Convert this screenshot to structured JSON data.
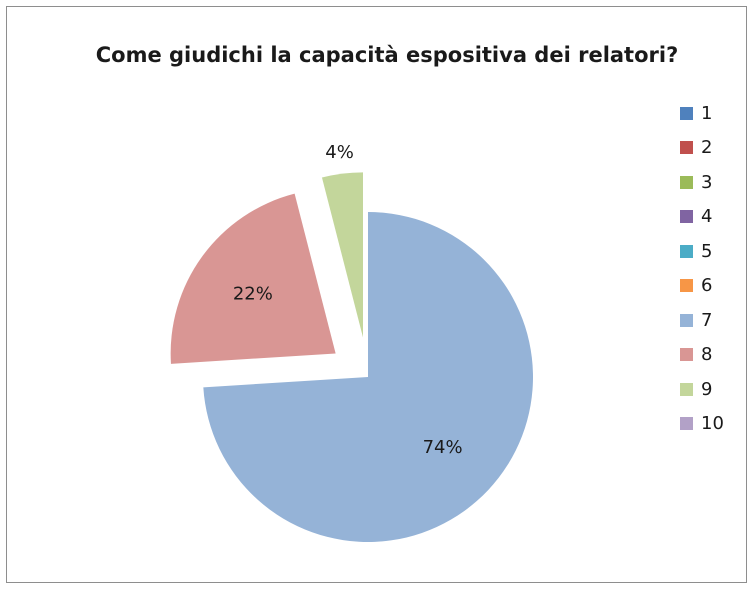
{
  "chart_data": {
    "type": "pie",
    "title": "Come giudichi la capacità espositiva dei relatori?",
    "legend_placement": "right",
    "categories": [
      "1",
      "2",
      "3",
      "4",
      "5",
      "6",
      "7",
      "8",
      "9",
      "10"
    ],
    "values": [
      0,
      0,
      0,
      0,
      0,
      0,
      74,
      22,
      4,
      0
    ],
    "labels": [
      "",
      "",
      "",
      "",
      "",
      "",
      "74%",
      "22%",
      "4%",
      ""
    ],
    "colors": [
      "#4f81bd",
      "#c0504d",
      "#9bbb59",
      "#8064a2",
      "#4bacc6",
      "#f79646",
      "#95b3d7",
      "#d99694",
      "#c3d69b",
      "#b2a1c7"
    ],
    "exploded": true
  }
}
